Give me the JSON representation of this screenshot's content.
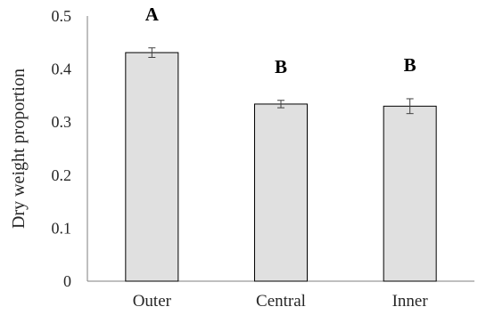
{
  "chart_data": {
    "type": "bar",
    "title": "",
    "xlabel": "",
    "ylabel": "Dry weight proportion",
    "ylim": [
      0,
      0.5
    ],
    "yticks": [
      "0",
      "0.1",
      "0.2",
      "0.3",
      "0.4",
      "0.5"
    ],
    "categories": [
      "Outer",
      "Central",
      "Inner"
    ],
    "values": [
      0.431,
      0.334,
      0.33
    ],
    "errors": [
      0.009,
      0.007,
      0.014
    ],
    "significance": [
      "A",
      "B",
      "B"
    ],
    "grid": false,
    "legend": "none",
    "colors": {
      "bar_fill": "#e0e0e0",
      "bar_stroke": "#000000",
      "axis": "#7f7f7f",
      "error": "#404040"
    }
  }
}
